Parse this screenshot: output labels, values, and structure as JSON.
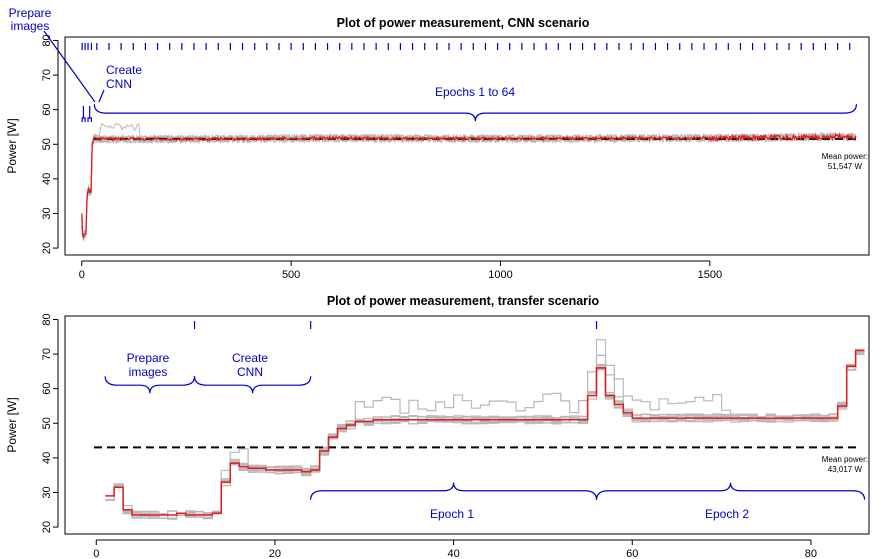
{
  "colors": {
    "series": "#e41a1c",
    "replicates": "#b8b8b8",
    "mean_line": "#000000",
    "annotation": "#0000cc",
    "axis": "#000000"
  },
  "chart_data": [
    {
      "type": "line",
      "title": "Plot of power measurement, CNN scenario",
      "xlabel": "",
      "ylabel": "Power [W]",
      "xlim": [
        -40,
        1880
      ],
      "ylim": [
        18,
        81
      ],
      "xticks": [
        0,
        500,
        1000,
        1500
      ],
      "xtick_labels": [
        "0",
        "500",
        "1000",
        "1500"
      ],
      "yticks": [
        20,
        30,
        40,
        50,
        60,
        70,
        80
      ],
      "ytick_labels": [
        "20",
        "30",
        "40",
        "50",
        "60",
        "70",
        "80"
      ],
      "mean_power": 51.547,
      "mean_label_line1": "Mean power:",
      "mean_label_line2": "51,547 W",
      "grid": false,
      "legend": "none",
      "series_profile": {
        "x": [
          0,
          2,
          4,
          6,
          8,
          10,
          12,
          14,
          16,
          18,
          20,
          22,
          25,
          30,
          40,
          60,
          100,
          300,
          600,
          900,
          1200,
          1500,
          1700,
          1800,
          1850
        ],
        "y": [
          30,
          24,
          23,
          24,
          24,
          24,
          33,
          36,
          37,
          36,
          37,
          36,
          50,
          52,
          51.5,
          51.5,
          51.5,
          51.5,
          51.8,
          51.6,
          51.7,
          51.8,
          52,
          52.2,
          52
        ]
      },
      "epoch_marks": [
        1,
        8,
        15,
        23,
        36,
        65,
        94,
        123,
        152,
        181,
        210,
        239,
        268,
        297,
        326,
        355,
        384,
        413,
        442,
        471,
        500,
        529,
        558,
        587,
        616,
        645,
        674,
        703,
        732,
        761,
        790,
        819,
        848,
        877,
        906,
        935,
        964,
        993,
        1022,
        1051,
        1080,
        1109,
        1138,
        1167,
        1196,
        1225,
        1254,
        1283,
        1312,
        1341,
        1370,
        1399,
        1428,
        1457,
        1486,
        1515,
        1544,
        1573,
        1602,
        1631,
        1660,
        1689,
        1718,
        1747,
        1776,
        1805,
        1834
      ],
      "annotations": {
        "prepare_line1": "Prepare",
        "prepare_line2": "images",
        "create_line1": "Create",
        "create_line2": "CNN",
        "epochs": "Epochs 1 to 64"
      }
    },
    {
      "type": "line",
      "title": "Plot of power measurement, transfer scenario",
      "xlabel": "",
      "ylabel": "Power [W]",
      "xlim": [
        -3.5,
        86.5
      ],
      "ylim": [
        18,
        81
      ],
      "xticks": [
        0,
        20,
        40,
        60,
        80
      ],
      "xtick_labels": [
        "0",
        "20",
        "40",
        "60",
        "80"
      ],
      "yticks": [
        20,
        30,
        40,
        50,
        60,
        70,
        80
      ],
      "ytick_labels": [
        "20",
        "30",
        "40",
        "50",
        "60",
        "70",
        "80"
      ],
      "mean_power": 43.017,
      "mean_label_line1": "Mean power:",
      "mean_label_line2": "43,017 W",
      "grid": false,
      "legend": "none",
      "series": {
        "x": [
          1,
          2,
          3,
          4,
          5,
          6,
          7,
          8,
          9,
          10,
          11,
          12,
          13,
          14,
          15,
          16,
          17,
          18,
          19,
          20,
          21,
          22,
          23,
          24,
          25,
          26,
          27,
          28,
          29,
          30,
          31,
          32,
          33,
          34,
          35,
          36,
          37,
          38,
          39,
          40,
          41,
          42,
          43,
          44,
          45,
          46,
          47,
          48,
          49,
          50,
          51,
          52,
          53,
          54,
          55,
          56,
          57,
          58,
          59,
          60,
          61,
          62,
          63,
          64,
          65,
          66,
          67,
          68,
          69,
          70,
          71,
          72,
          73,
          74,
          75,
          76,
          77,
          78,
          79,
          80,
          81,
          82,
          83,
          84,
          85
        ],
        "y": [
          29,
          31.5,
          25,
          23.5,
          23.5,
          23.5,
          23.5,
          23.5,
          24,
          23.5,
          23.5,
          23.5,
          24,
          33,
          38.5,
          37.5,
          37,
          37,
          36.5,
          36.5,
          36.5,
          36.5,
          36,
          36.5,
          42,
          46,
          48.5,
          49.5,
          50.5,
          50.5,
          51,
          51,
          51,
          51,
          51,
          51,
          51,
          51,
          51,
          51,
          51,
          51,
          51,
          51,
          51,
          51,
          51,
          51,
          51,
          51,
          51,
          51,
          51,
          51,
          58,
          66,
          58,
          55.5,
          53,
          51.5,
          51.5,
          51.5,
          51.5,
          51.5,
          51.5,
          51.5,
          51.5,
          51.5,
          51.5,
          51.5,
          51.5,
          51.5,
          51.5,
          51.5,
          51.5,
          51.5,
          51.5,
          51.5,
          51.5,
          51.5,
          51.5,
          51.5,
          55,
          66.5,
          71
        ]
      },
      "epoch_marks": [
        11,
        24,
        56
      ],
      "annotations": {
        "prepare_line1": "Prepare",
        "prepare_line2": "images",
        "create_line1": "Create",
        "create_line2": "CNN",
        "epoch1": "Epoch 1",
        "epoch2": "Epoch 2"
      }
    }
  ]
}
